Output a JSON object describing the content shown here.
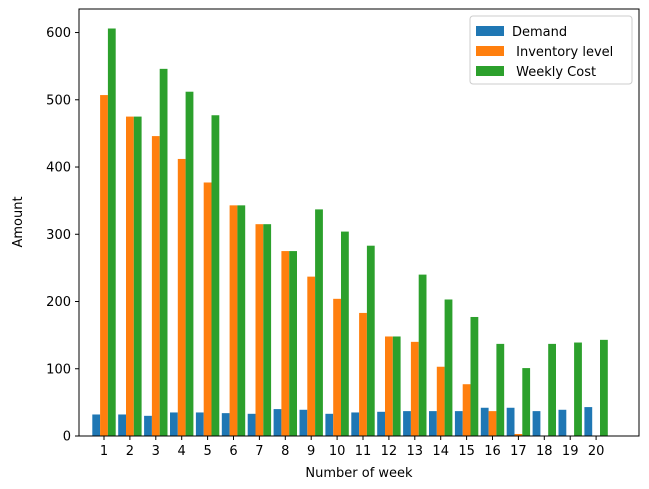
{
  "chart_data": {
    "type": "bar",
    "title": "",
    "xlabel": "Number of week",
    "ylabel": "Amount",
    "categories": [
      "1",
      "2",
      "3",
      "4",
      "5",
      "6",
      "7",
      "8",
      "9",
      "10",
      "11",
      "12",
      "13",
      "14",
      "15",
      "16",
      "17",
      "18",
      "19",
      "20"
    ],
    "ylim": [
      0,
      635
    ],
    "yticks": [
      0,
      100,
      200,
      300,
      400,
      500,
      600
    ],
    "grid": false,
    "legend_position": "top-right",
    "series": [
      {
        "name": "Demand",
        "color": "#1f77b4",
        "values": [
          32,
          32,
          30,
          35,
          35,
          34,
          33,
          40,
          39,
          33,
          35,
          36,
          37,
          37,
          37,
          42,
          42,
          37,
          39,
          43
        ]
      },
      {
        "name": " Inventory level",
        "color": "#ff7f0e",
        "values": [
          507,
          475,
          446,
          412,
          377,
          343,
          315,
          275,
          237,
          204,
          183,
          148,
          140,
          103,
          77,
          37,
          3,
          0,
          0,
          0
        ]
      },
      {
        "name": " Weekly Cost",
        "color": "#2ca02c",
        "values": [
          606,
          475,
          546,
          512,
          477,
          343,
          315,
          275,
          337,
          304,
          283,
          148,
          240,
          203,
          177,
          137,
          101,
          137,
          139,
          143
        ]
      }
    ]
  }
}
